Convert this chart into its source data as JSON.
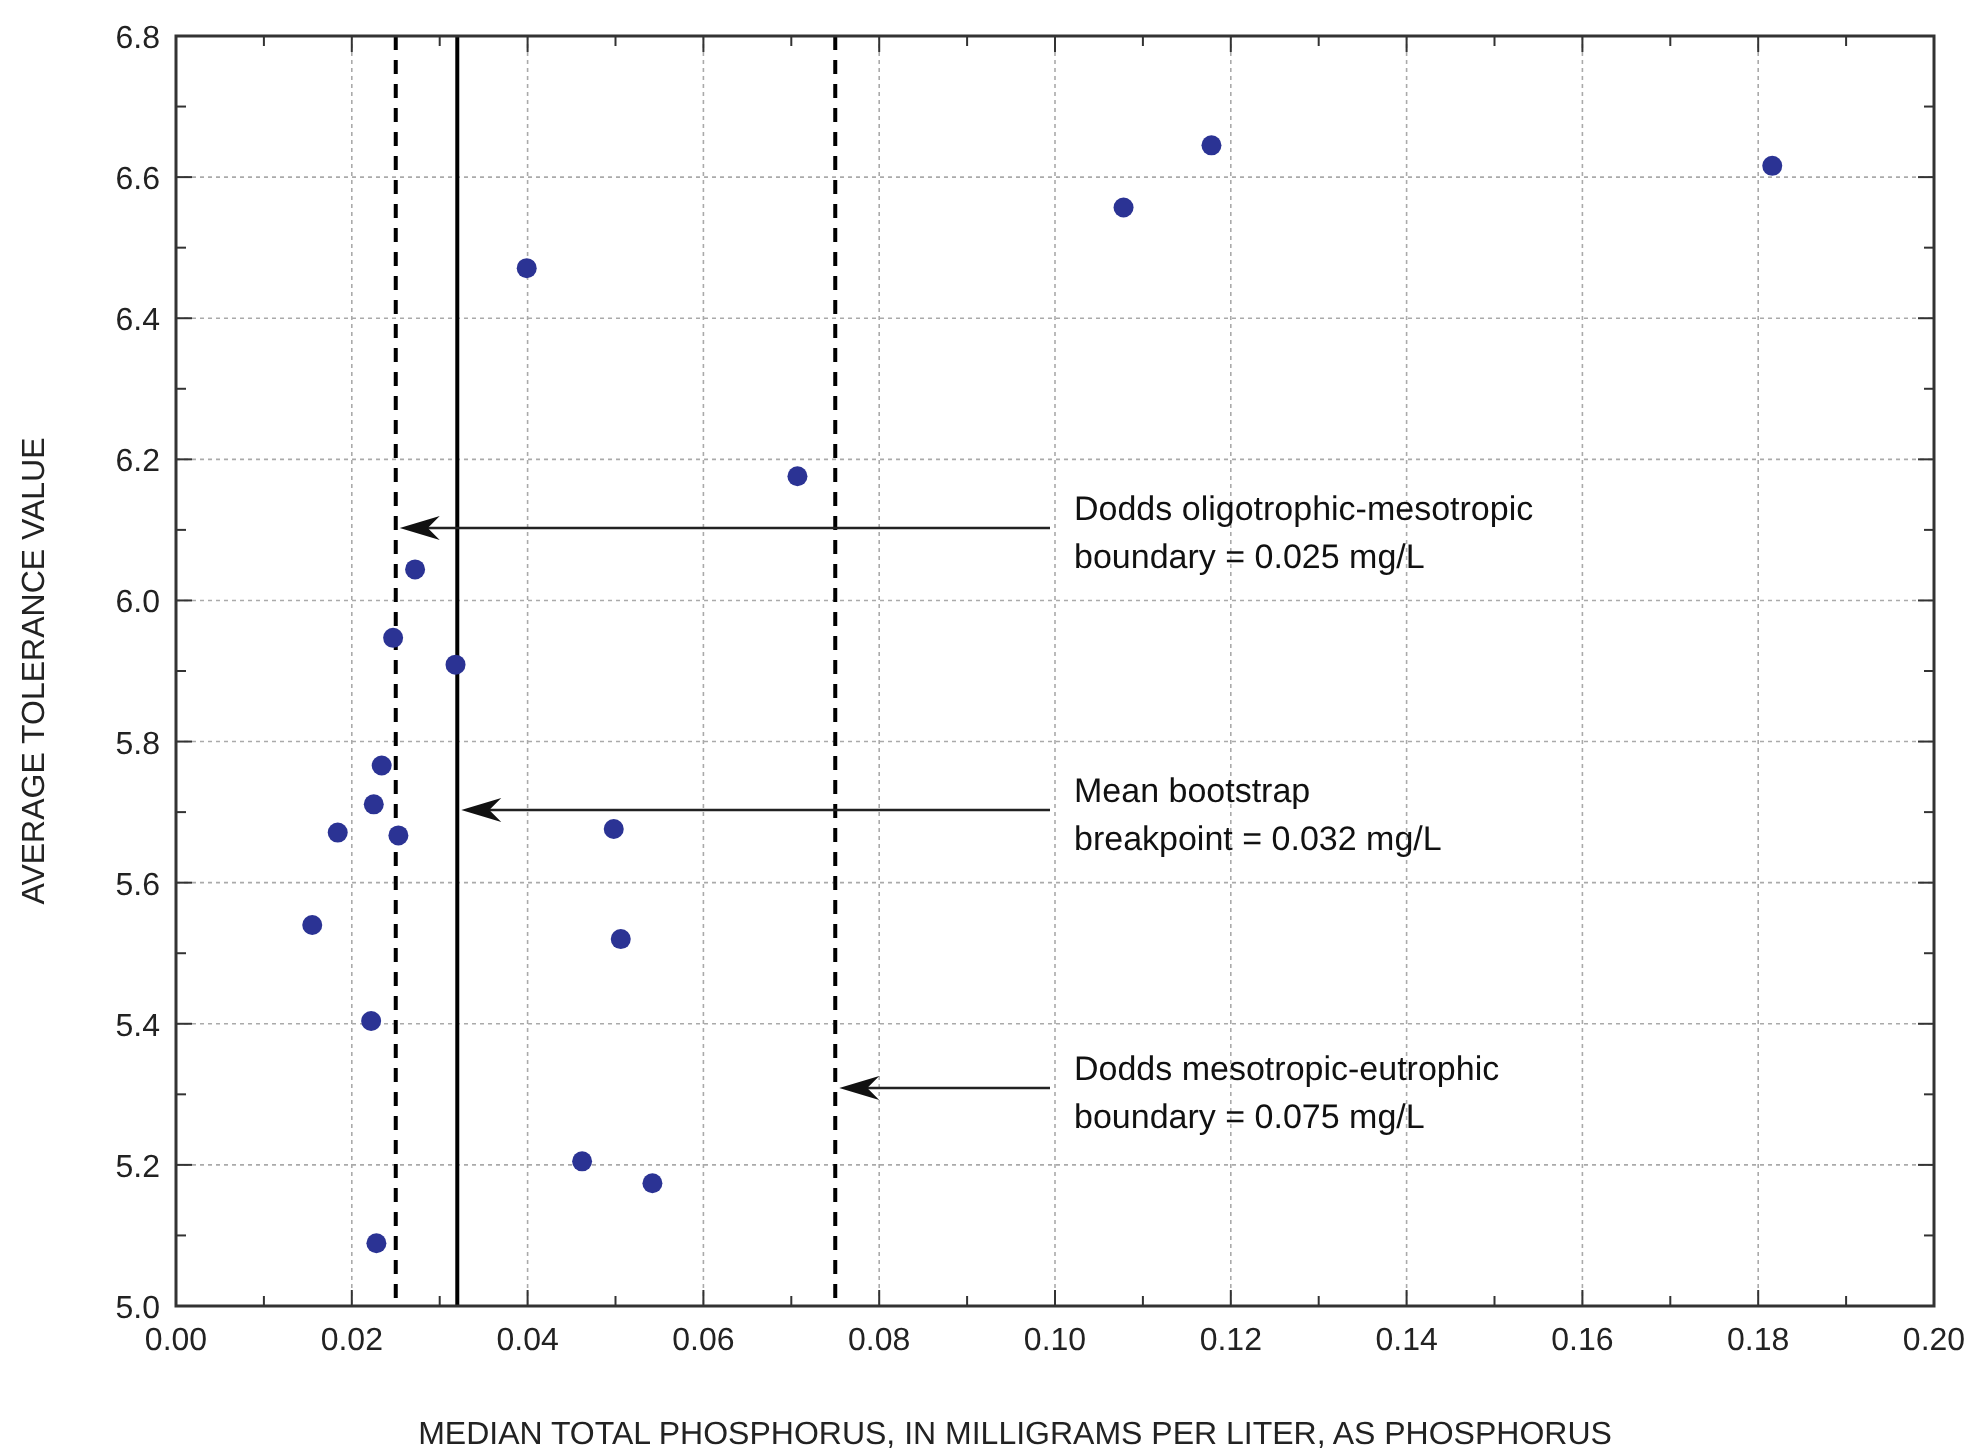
{
  "chart_data": {
    "type": "scatter",
    "xlabel": "MEDIAN TOTAL PHOSPHORUS, IN MILLIGRAMS PER LITER, AS PHOSPHORUS",
    "ylabel": "AVERAGE TOLERANCE VALUE",
    "x": [
      0.0247,
      0.0318,
      0.0234,
      0.0225,
      0.0184,
      0.0253,
      0.0498,
      0.0155,
      0.0506,
      0.0222,
      0.0462,
      0.0542,
      0.0228,
      0.0399,
      0.0707,
      0.0272,
      0.1078,
      0.1178,
      0.1816
    ],
    "series": [
      {
        "color": "#2b3394",
        "values": [
          5.947,
          5.909,
          5.766,
          5.711,
          5.671,
          5.667,
          5.676,
          5.54,
          5.52,
          5.404,
          5.205,
          5.174,
          5.089,
          6.471,
          6.176,
          6.044,
          6.557,
          6.645,
          6.616
        ]
      }
    ],
    "marker": "circle",
    "xlim": [
      0,
      0.2
    ],
    "ylim": [
      5.0,
      6.8
    ],
    "xticks": [
      {
        "value": 0,
        "label": "0.00"
      },
      {
        "value": 0.01,
        "label": null
      },
      {
        "value": 0.02,
        "label": "0.02"
      },
      {
        "value": 0.03,
        "label": null
      },
      {
        "value": 0.04,
        "label": "0.04"
      },
      {
        "value": 0.05,
        "label": null
      },
      {
        "value": 0.06,
        "label": "0.06"
      },
      {
        "value": 0.07,
        "label": null
      },
      {
        "value": 0.08,
        "label": "0.08"
      },
      {
        "value": 0.09,
        "label": null
      },
      {
        "value": 0.1,
        "label": "0.10"
      },
      {
        "value": 0.11,
        "label": null
      },
      {
        "value": 0.12,
        "label": "0.12"
      },
      {
        "value": 0.13,
        "label": null
      },
      {
        "value": 0.14,
        "label": "0.14"
      },
      {
        "value": 0.15,
        "label": null
      },
      {
        "value": 0.16,
        "label": "0.16"
      },
      {
        "value": 0.17,
        "label": null
      },
      {
        "value": 0.18,
        "label": "0.18"
      },
      {
        "value": 0.19,
        "label": null
      },
      {
        "value": 0.2,
        "label": "0.20"
      }
    ],
    "yticks": [
      {
        "value": 5.0,
        "label": "5.0"
      },
      {
        "value": 5.1,
        "label": null
      },
      {
        "value": 5.2,
        "label": "5.2"
      },
      {
        "value": 5.3,
        "label": null
      },
      {
        "value": 5.4,
        "label": "5.4"
      },
      {
        "value": 5.5,
        "label": null
      },
      {
        "value": 5.6,
        "label": "5.6"
      },
      {
        "value": 5.7,
        "label": null
      },
      {
        "value": 5.8,
        "label": "5.8"
      },
      {
        "value": 5.9,
        "label": null
      },
      {
        "value": 6.0,
        "label": "6.0"
      },
      {
        "value": 6.1,
        "label": null
      },
      {
        "value": 6.2,
        "label": "6.2"
      },
      {
        "value": 6.3,
        "label": null
      },
      {
        "value": 6.4,
        "label": "6.4"
      },
      {
        "value": 6.5,
        "label": null
      },
      {
        "value": 6.6,
        "label": "6.6"
      },
      {
        "value": 6.7,
        "label": null
      },
      {
        "value": 6.8,
        "label": "6.8"
      }
    ],
    "grid": true,
    "ref_lines": [
      {
        "axis": "x",
        "value": 0.025,
        "line_style": "dashed",
        "color": "#000000"
      },
      {
        "axis": "x",
        "value": 0.032,
        "line_style": "solid",
        "color": "#000000"
      },
      {
        "axis": "x",
        "value": 0.075,
        "line_style": "dashed",
        "color": "#000000"
      }
    ],
    "annotations": [
      "Dodds oligotrophic-mesotropic\nboundary = 0.025 mg/L",
      "Mean bootstrap\nbreakpoint = 0.032 mg/L",
      "Dodds mesotropic-eutrophic\nboundary = 0.075 mg/L"
    ]
  }
}
